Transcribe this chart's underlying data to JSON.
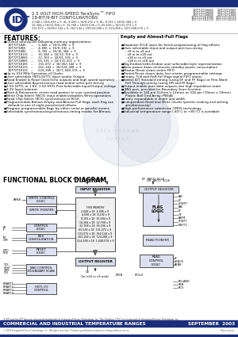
{
  "page_bg": "#ffffff",
  "top_bar_color": "#1a2e7a",
  "footer_bar_color": "#1a2e7a",
  "logo_color": "#1a2e7a",
  "title_line1": "2.5 VOLT HIGH-SPEED TeraSync™ FIFO",
  "title_line2": "18-BIT/9-BIT CONFIGURATIONS",
  "header_mem_lines": [
    "2,048 x 18/4,096 x 9, 4L, 4,096 x 18/8,192 x 9, 8L, 8,192 x 18/16,384 x 9",
    "16,384 x 18/32,768 x 9, 32,768 x 18/65,536 x 9",
    "131,072 x 18/262,144 x 9, 262,144 x 18/524,288 x 9, 524,288 x 18/1,048,576 x 9"
  ],
  "pn_right_lines": [
    "IDT72T18445  IDT72T1865",
    "IDT72T18485  IDT72T1866",
    "IDT72T18885  IDT72T1868",
    "IDT72T181885 IDT72T18115",
    "IDT72T181125 IDT72T18125"
  ],
  "features_title": "FEATURES:",
  "features_left": [
    [
      "bullet",
      "Choose among the following memory organizations:"
    ],
    [
      "indent",
      "IDT72T1845   —   2,048 x 18/4,096 x 9"
    ],
    [
      "indent",
      "IDT72T1865   —   4,096 x 18/8,192 x 9"
    ],
    [
      "indent",
      "IDT72T1885   —   8,192 x 18/16,384 x 9"
    ],
    [
      "indent",
      "IDT72T18115  —   16,384 x 18/32,768 x 9"
    ],
    [
      "indent",
      "IDT72T18885  —   32,768 x 18/65,536 x 9"
    ],
    [
      "indent",
      "IDT72T18885  —   65,536 x 18/131,072 x 9"
    ],
    [
      "indent",
      "IDT72T18105  —   131,072 x 18/262,144 x 9"
    ],
    [
      "indent",
      "IDT72T18115  —   262,144 x 18/524,288 x 9"
    ],
    [
      "indent",
      "IDT72T18125  —   524,288 x 18/1,048,576 x 9"
    ],
    [
      "bullet",
      "Up to 333 MHz Operation of Clocks"
    ],
    [
      "bullet",
      "User selectable HSTL/LVTTL Input and/or Output"
    ],
    [
      "bullet",
      "Read Enable & Read Clock Echo outputs and high speed operation"
    ],
    [
      "bullet",
      "User selectable Asynchronous read and/or write port timing"
    ],
    [
      "bullet",
      "2.5V LVTTL or 1.8V, 1.5V HSTL Port Selectable Input/Output voltage"
    ],
    [
      "bullet",
      "3.3V Input tolerant"
    ],
    [
      "bullet",
      "Mark & Retransmit: resets read pointer to user marked position"
    ],
    [
      "bullet",
      "Write Chip Select (WCS) input enables/disables Write operations"
    ],
    [
      "bullet",
      "Read Chip Select (RCS) synchronous to RCLK"
    ],
    [
      "bullet",
      "Programmable Almost-Empty and Almost-Full flags, each flag can"
    ],
    [
      "indent2",
      "default to one of eight preselected offsets"
    ],
    [
      "bullet",
      "Program programmable flags by either serial or parallel means"
    ],
    [
      "bullet",
      "Selectable synchronous/asynchronous timing modes for Almost-"
    ]
  ],
  "features_right": [
    [
      "header",
      "Empty and Almost-Full Flags"
    ],
    [
      "bullet",
      "Separate SCLK input for Serial programming of flag offsets"
    ],
    [
      "bullet",
      "User selectable input and output port bus-sizing"
    ],
    [
      "sub",
      "x9 in to x9 out"
    ],
    [
      "sub",
      "x9 in to x18 out"
    ],
    [
      "sub",
      "x18 in to x9 out"
    ],
    [
      "sub",
      "x18 in to x18 out"
    ],
    [
      "bullet",
      "Big-Endian/Little-Endian user selectable byte representation"
    ],
    [
      "bullet",
      "Auto power down minimizes standby power consumption"
    ],
    [
      "bullet",
      "Master Reset clears entire FIFO"
    ],
    [
      "bullet",
      "Partial Reset clears data, but retains programmable settings"
    ],
    [
      "bullet",
      "Empty, Full and Half-Full flags signal FIFO status"
    ],
    [
      "bullet",
      "Select IDT Standard timing (using EF and FF flags) or First Word"
    ],
    [
      "indent2",
      "Fall Through timing (using OR and IR flags)"
    ],
    [
      "bullet",
      "Output enable puts data outputs into high impedance state"
    ],
    [
      "bullet",
      "JTAG port, provided for Boundary Scan function"
    ],
    [
      "bullet",
      "Available in 144-pin (12mm x 12mm) or 316-pin (19mm x 19mm)"
    ],
    [
      "indent2",
      "Plastic Ball Grid Array (PBGA)"
    ],
    [
      "bullet",
      "Easily expandable in depth and width"
    ],
    [
      "bullet",
      "Independent Read and Write Clocks (permit reading and writing"
    ],
    [
      "indent2",
      "simultaneously)"
    ],
    [
      "bullet",
      "High-performance submicron CMOS technology"
    ],
    [
      "bullet",
      "Industrial temperature range (-40°C to +85°C) is available"
    ]
  ],
  "section_header": "FUNCTIONAL BLOCK DIAGRAM",
  "footer_left": "COMMERCIAL AND INDUSTRIAL TEMPERATURE RANGES",
  "footer_right": "SEPTEMBER  2003",
  "copyright": "© 2003 Integrated Device Technology, Inc.  All rights reserved.  Product specifications subject to change without notice.",
  "doc_number": "DSxxx-xxxxx"
}
